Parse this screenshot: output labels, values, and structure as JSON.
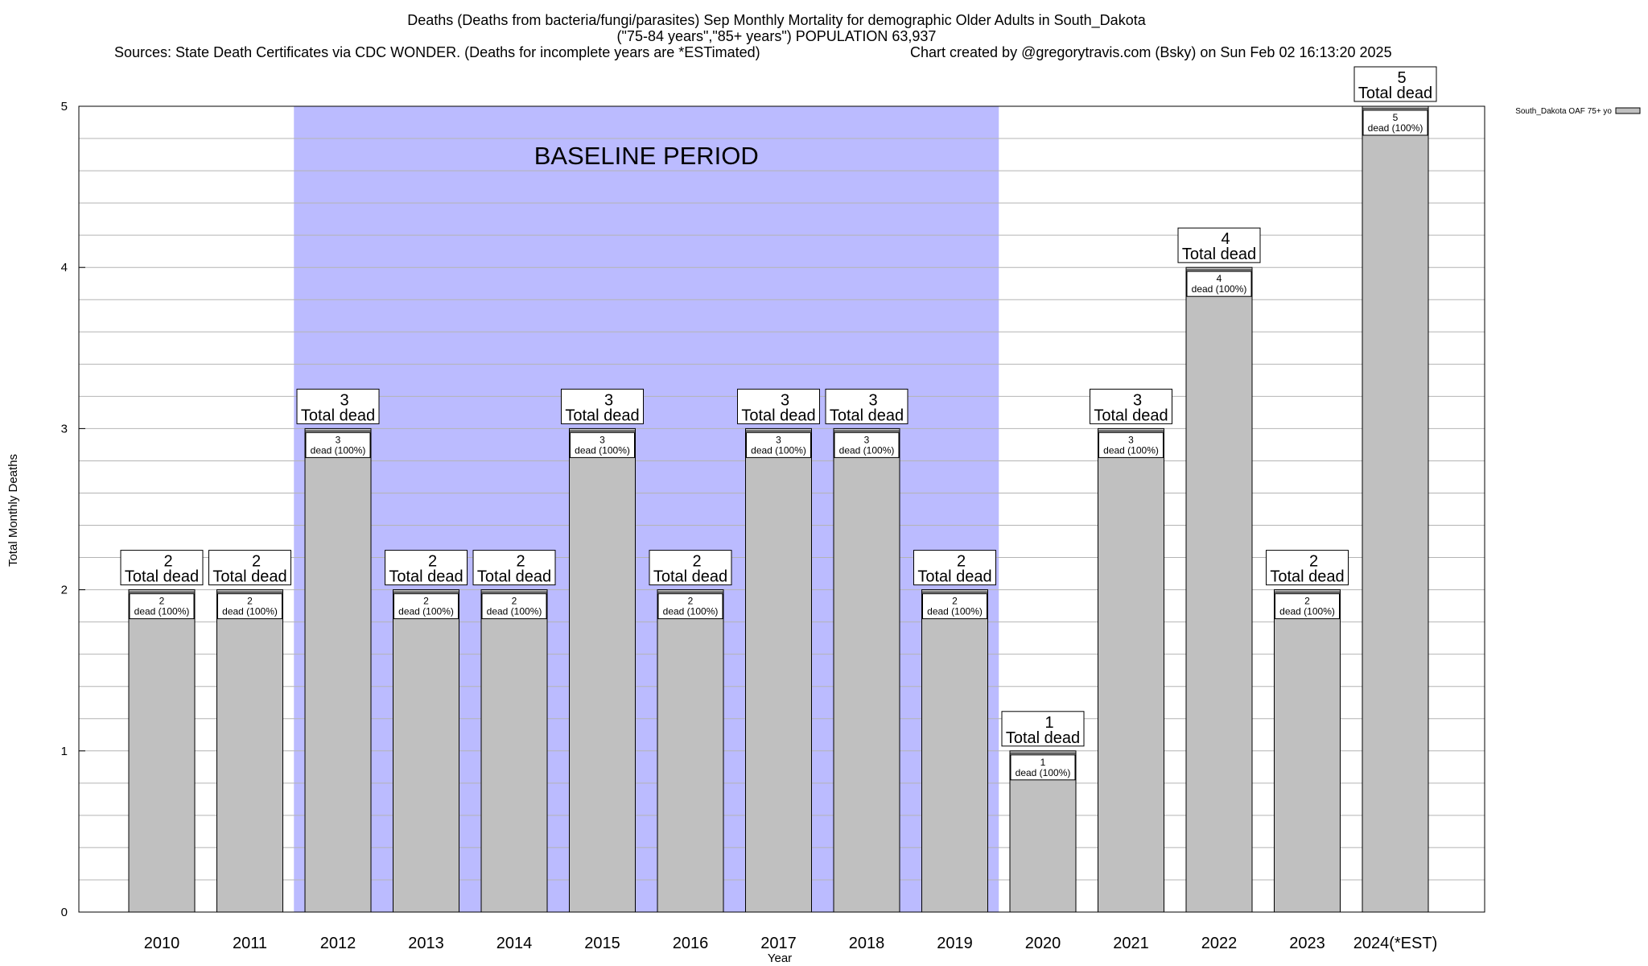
{
  "header": {
    "title_line1": "Deaths (Deaths from bacteria/fungi/parasites) Sep Monthly Mortality for demographic Older Adults in South_Dakota",
    "title_line2": "(\"75-84 years\",\"85+ years\") POPULATION 63,937",
    "sources": "Sources: State Death Certificates via CDC WONDER. (Deaths for incomplete years are *ESTimated)",
    "credit": "Chart created by @gregorytravis.com (Bsky) on Sun Feb 02 16:13:20 2025"
  },
  "chart_data": {
    "type": "bar",
    "xlabel": "Year",
    "ylabel": "Total Monthly Deaths",
    "ylim": [
      0,
      5
    ],
    "yticks": [
      0,
      1,
      2,
      3,
      4,
      5
    ],
    "grid": true,
    "legend_position": "top-right",
    "categories": [
      "2010",
      "2011",
      "2012",
      "2013",
      "2014",
      "2015",
      "2016",
      "2017",
      "2018",
      "2019",
      "2020",
      "2021",
      "2022",
      "2023",
      "2024(*EST)"
    ],
    "series": [
      {
        "name": "South_Dakota OAF 75+ yo",
        "color": "#c0c0c0",
        "values": [
          2,
          2,
          3,
          2,
          2,
          3,
          2,
          3,
          3,
          2,
          1,
          3,
          4,
          2,
          5
        ]
      }
    ],
    "total_label_text": "Total dead",
    "segment_label_text": "dead (100%)",
    "baseline": {
      "label": "BASELINE PERIOD",
      "start": "2012",
      "end": "2019",
      "color": "#bbbbff"
    }
  }
}
